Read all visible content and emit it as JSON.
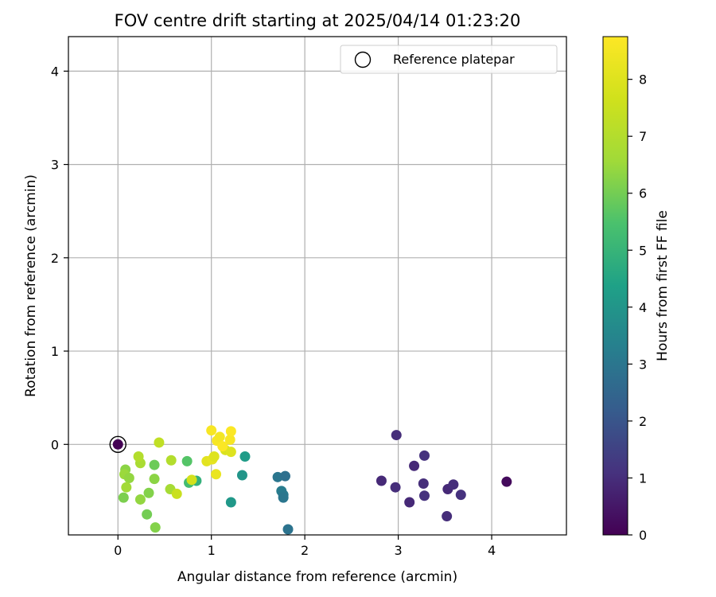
{
  "chart_data": {
    "type": "scatter",
    "title": "FOV centre drift starting at 2025/04/14 01:23:20",
    "xlabel": "Angular distance from reference (arcmin)",
    "ylabel": "Rotation from reference (arcmin)",
    "xlim": [
      -0.53,
      4.8
    ],
    "ylim": [
      -0.97,
      4.37
    ],
    "xticks": [
      0,
      1,
      2,
      3,
      4
    ],
    "yticks": [
      0,
      1,
      2,
      3,
      4
    ],
    "xtick_labels": [
      "0",
      "1",
      "2",
      "3",
      "4"
    ],
    "ytick_labels": [
      "0",
      "1",
      "2",
      "3",
      "4"
    ],
    "grid": true,
    "legend": {
      "position": "top-right",
      "entries": [
        "Reference platepar"
      ]
    },
    "colorbar": {
      "label": "Hours from first FF file",
      "min": 0,
      "max": 8.75,
      "ticks": [
        0,
        1,
        2,
        3,
        4,
        5,
        6,
        7,
        8
      ],
      "tick_labels": [
        "0",
        "1",
        "2",
        "3",
        "4",
        "5",
        "6",
        "7",
        "8"
      ],
      "colormap": "viridis"
    },
    "reference": {
      "x": 0,
      "y": 0,
      "c": 0.0
    },
    "points": [
      {
        "x": 4.16,
        "y": -0.4,
        "c": 0.2
      },
      {
        "x": 2.98,
        "y": 0.1,
        "c": 1.0
      },
      {
        "x": 3.17,
        "y": -0.23,
        "c": 0.9
      },
      {
        "x": 3.28,
        "y": -0.12,
        "c": 1.1
      },
      {
        "x": 2.82,
        "y": -0.39,
        "c": 0.9
      },
      {
        "x": 2.97,
        "y": -0.46,
        "c": 1.0
      },
      {
        "x": 3.27,
        "y": -0.42,
        "c": 1.0
      },
      {
        "x": 3.12,
        "y": -0.62,
        "c": 0.9
      },
      {
        "x": 3.28,
        "y": -0.55,
        "c": 1.1
      },
      {
        "x": 3.53,
        "y": -0.48,
        "c": 0.9
      },
      {
        "x": 3.59,
        "y": -0.43,
        "c": 1.0
      },
      {
        "x": 3.67,
        "y": -0.54,
        "c": 1.1
      },
      {
        "x": 3.52,
        "y": -0.77,
        "c": 1.0
      },
      {
        "x": 1.71,
        "y": -0.35,
        "c": 3.0
      },
      {
        "x": 1.79,
        "y": -0.34,
        "c": 2.8
      },
      {
        "x": 1.75,
        "y": -0.5,
        "c": 3.2
      },
      {
        "x": 1.77,
        "y": -0.54,
        "c": 3.1
      },
      {
        "x": 1.77,
        "y": -0.57,
        "c": 3.0
      },
      {
        "x": 1.82,
        "y": -0.91,
        "c": 2.9
      },
      {
        "x": 1.36,
        "y": -0.13,
        "c": 4.2
      },
      {
        "x": 1.33,
        "y": -0.33,
        "c": 4.0
      },
      {
        "x": 1.21,
        "y": -0.62,
        "c": 4.1
      },
      {
        "x": 0.84,
        "y": -0.39,
        "c": 4.9
      },
      {
        "x": 0.76,
        "y": -0.41,
        "c": 5.3
      },
      {
        "x": 0.74,
        "y": -0.18,
        "c": 5.6
      },
      {
        "x": 0.39,
        "y": -0.22,
        "c": 5.9
      },
      {
        "x": 0.39,
        "y": -0.37,
        "c": 6.3
      },
      {
        "x": 0.33,
        "y": -0.52,
        "c": 6.2
      },
      {
        "x": 0.31,
        "y": -0.75,
        "c": 6.0
      },
      {
        "x": 0.4,
        "y": -0.89,
        "c": 6.2
      },
      {
        "x": 0.24,
        "y": -0.59,
        "c": 6.4
      },
      {
        "x": 0.24,
        "y": -0.2,
        "c": 6.8
      },
      {
        "x": 0.22,
        "y": -0.13,
        "c": 7.0
      },
      {
        "x": 0.44,
        "y": 0.02,
        "c": 7.3
      },
      {
        "x": 0.57,
        "y": -0.17,
        "c": 7.0
      },
      {
        "x": 0.56,
        "y": -0.48,
        "c": 6.7
      },
      {
        "x": 0.63,
        "y": -0.53,
        "c": 7.5
      },
      {
        "x": 0.08,
        "y": -0.27,
        "c": 6.3
      },
      {
        "x": 0.07,
        "y": -0.32,
        "c": 6.5
      },
      {
        "x": 0.12,
        "y": -0.36,
        "c": 6.4
      },
      {
        "x": 0.09,
        "y": -0.46,
        "c": 6.6
      },
      {
        "x": 0.06,
        "y": -0.57,
        "c": 6.1
      },
      {
        "x": 0.79,
        "y": -0.38,
        "c": 7.7
      },
      {
        "x": 0.95,
        "y": -0.18,
        "c": 8.1
      },
      {
        "x": 1.01,
        "y": -0.16,
        "c": 8.2
      },
      {
        "x": 1.03,
        "y": -0.13,
        "c": 8.0
      },
      {
        "x": 1.15,
        "y": -0.06,
        "c": 7.9
      },
      {
        "x": 1.21,
        "y": -0.08,
        "c": 8.0
      },
      {
        "x": 1.05,
        "y": -0.32,
        "c": 8.3
      },
      {
        "x": 1.0,
        "y": 0.15,
        "c": 8.6
      },
      {
        "x": 1.06,
        "y": 0.04,
        "c": 8.6
      },
      {
        "x": 1.09,
        "y": 0.08,
        "c": 8.5
      },
      {
        "x": 1.12,
        "y": -0.02,
        "c": 8.7
      },
      {
        "x": 1.2,
        "y": 0.05,
        "c": 8.6
      },
      {
        "x": 1.21,
        "y": 0.14,
        "c": 8.7
      }
    ]
  }
}
